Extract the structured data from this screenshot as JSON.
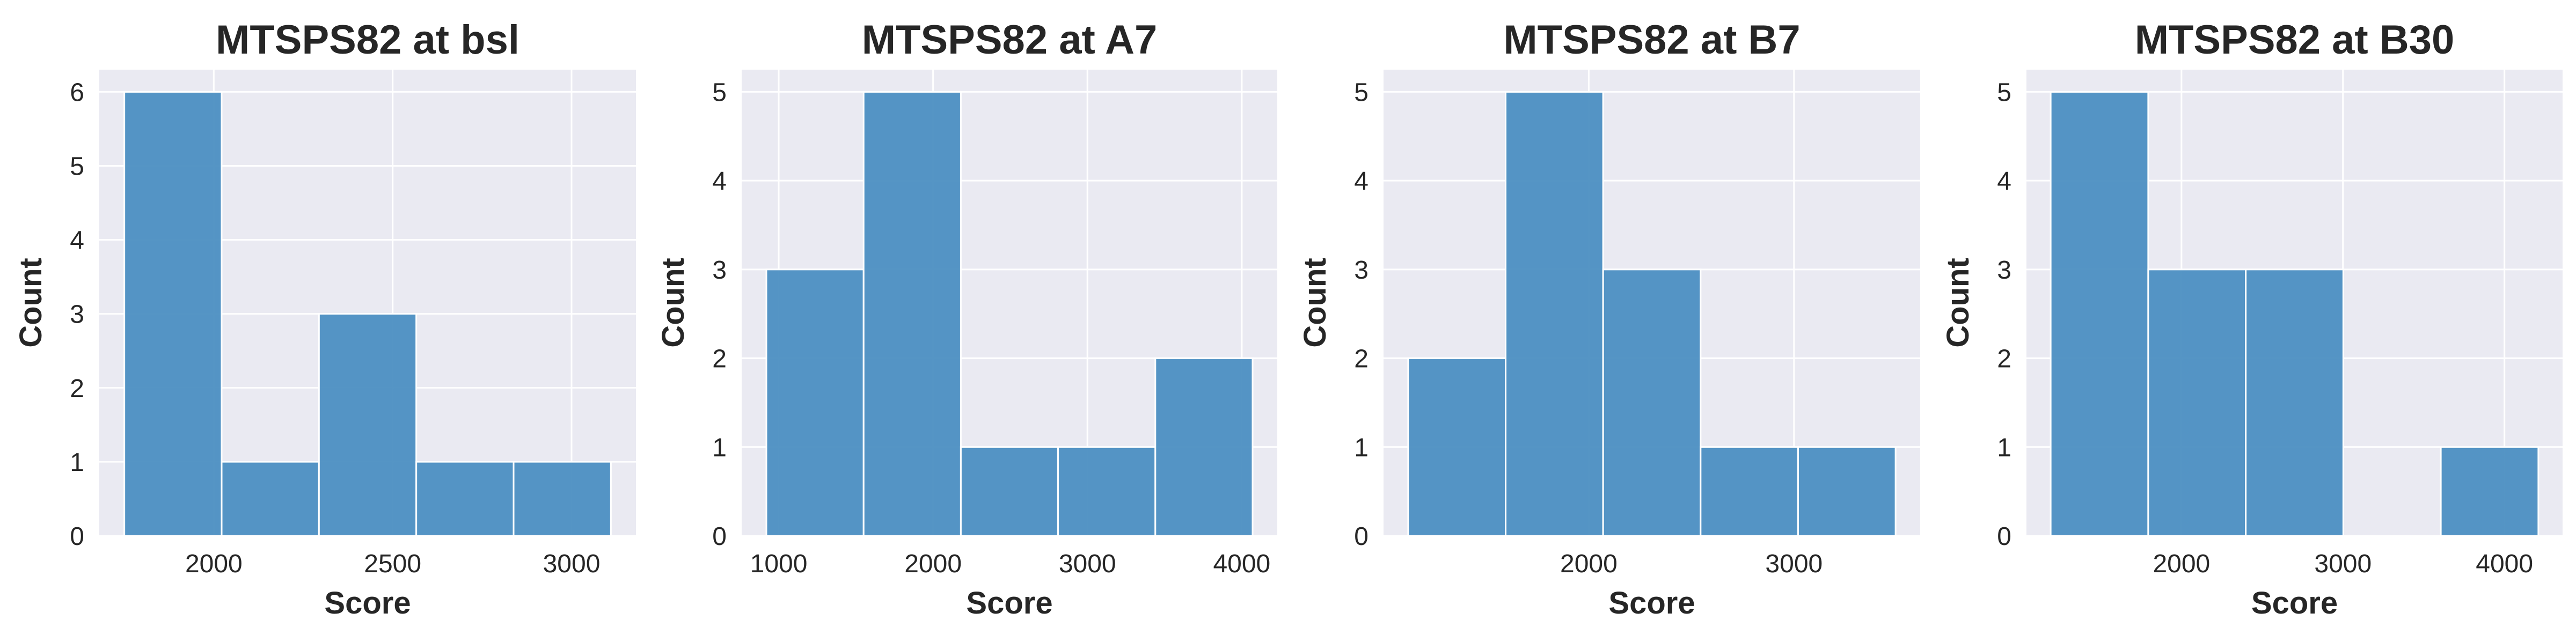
{
  "chart_data": [
    {
      "type": "histogram",
      "title": "MTSPS82 at bsl",
      "xlabel": "Score",
      "ylabel": "Count",
      "bin_edges": [
        1750,
        2022,
        2294,
        2566,
        2838,
        3110
      ],
      "counts": [
        6,
        1,
        3,
        1,
        1
      ],
      "xlim": [
        1680,
        3180
      ],
      "ylim": [
        0,
        6.3
      ],
      "xticks": [
        2000,
        2500,
        3000
      ],
      "yticks": [
        0,
        1,
        2,
        3,
        4,
        5,
        6
      ],
      "grid": true
    },
    {
      "type": "histogram",
      "title": "MTSPS82 at A7",
      "xlabel": "Score",
      "ylabel": "Count",
      "bin_edges": [
        920,
        1550,
        2180,
        2810,
        3440,
        4070
      ],
      "counts": [
        3,
        5,
        1,
        1,
        2
      ],
      "xlim": [
        760,
        4230
      ],
      "ylim": [
        0,
        5.25
      ],
      "xticks": [
        1000,
        2000,
        3000,
        4000
      ],
      "yticks": [
        0,
        1,
        2,
        3,
        4,
        5
      ],
      "grid": true
    },
    {
      "type": "histogram",
      "title": "MTSPS82 at B7",
      "xlabel": "Score",
      "ylabel": "Count",
      "bin_edges": [
        1120,
        1595,
        2070,
        2545,
        3020,
        3495
      ],
      "counts": [
        2,
        5,
        3,
        1,
        1
      ],
      "xlim": [
        1000,
        3615
      ],
      "ylim": [
        0,
        5.25
      ],
      "xticks": [
        2000,
        3000
      ],
      "yticks": [
        0,
        1,
        2,
        3,
        4,
        5
      ],
      "grid": true
    },
    {
      "type": "histogram",
      "title": "MTSPS82 at B30",
      "xlabel": "Score",
      "ylabel": "Count",
      "bin_edges": [
        1190,
        1794,
        2398,
        3002,
        3606,
        4210
      ],
      "counts": [
        5,
        3,
        3,
        0,
        1
      ],
      "xlim": [
        1040,
        4360
      ],
      "ylim": [
        0,
        5.25
      ],
      "xticks": [
        2000,
        3000,
        4000
      ],
      "yticks": [
        0,
        1,
        2,
        3,
        4,
        5
      ],
      "grid": true
    }
  ],
  "colors": {
    "bar": "#4c8fc2",
    "bar_edge": "#ffffff",
    "plot_background": "#eaeaf2",
    "grid": "#ffffff",
    "text": "#262626"
  }
}
